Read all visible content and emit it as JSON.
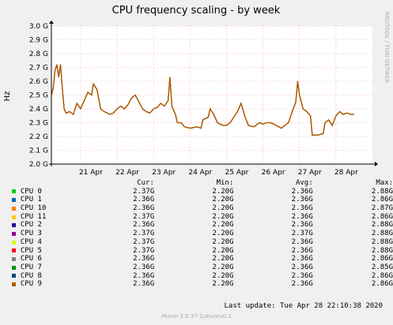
{
  "chart_data": {
    "type": "line",
    "title": "CPU frequency scaling - by week",
    "ylabel": "Hz",
    "ylim": [
      2.0,
      3.0
    ],
    "yticks": [
      {
        "v": 3.0,
        "label": "3.0 G"
      },
      {
        "v": 2.9,
        "label": "2.9 G"
      },
      {
        "v": 2.8,
        "label": "2.8 G"
      },
      {
        "v": 2.7,
        "label": "2.7 G"
      },
      {
        "v": 2.6,
        "label": "2.6 G"
      },
      {
        "v": 2.5,
        "label": "2.5 G"
      },
      {
        "v": 2.4,
        "label": "2.4 G"
      },
      {
        "v": 2.3,
        "label": "2.3 G"
      },
      {
        "v": 2.2,
        "label": "2.2 G"
      },
      {
        "v": 2.1,
        "label": "2.1 G"
      },
      {
        "v": 2.0,
        "label": "2.0 G"
      }
    ],
    "xlim": [
      20.2,
      29.0
    ],
    "xticks": [
      {
        "v": 21,
        "label": "21 Apr"
      },
      {
        "v": 22,
        "label": "22 Apr"
      },
      {
        "v": 23,
        "label": "23 Apr"
      },
      {
        "v": 24,
        "label": "24 Apr"
      },
      {
        "v": 25,
        "label": "25 Apr"
      },
      {
        "v": 26,
        "label": "26 Apr"
      },
      {
        "v": 27,
        "label": "27 Apr"
      },
      {
        "v": 28,
        "label": "28 Apr"
      }
    ],
    "x_unit": "day of April 2020",
    "grid": true,
    "series_points": [
      [
        20.2,
        2.5
      ],
      [
        20.25,
        2.55
      ],
      [
        20.3,
        2.68
      ],
      [
        20.35,
        2.72
      ],
      [
        20.4,
        2.63
      ],
      [
        20.45,
        2.72
      ],
      [
        20.5,
        2.55
      ],
      [
        20.55,
        2.4
      ],
      [
        20.6,
        2.37
      ],
      [
        20.7,
        2.38
      ],
      [
        20.8,
        2.36
      ],
      [
        20.9,
        2.44
      ],
      [
        21.0,
        2.4
      ],
      [
        21.1,
        2.46
      ],
      [
        21.2,
        2.52
      ],
      [
        21.3,
        2.5
      ],
      [
        21.35,
        2.58
      ],
      [
        21.45,
        2.54
      ],
      [
        21.55,
        2.4
      ],
      [
        21.65,
        2.38
      ],
      [
        21.8,
        2.36
      ],
      [
        21.9,
        2.37
      ],
      [
        22.0,
        2.4
      ],
      [
        22.1,
        2.42
      ],
      [
        22.2,
        2.4
      ],
      [
        22.3,
        2.43
      ],
      [
        22.4,
        2.48
      ],
      [
        22.5,
        2.5
      ],
      [
        22.6,
        2.45
      ],
      [
        22.7,
        2.4
      ],
      [
        22.8,
        2.38
      ],
      [
        22.9,
        2.37
      ],
      [
        23.0,
        2.4
      ],
      [
        23.1,
        2.41
      ],
      [
        23.2,
        2.44
      ],
      [
        23.3,
        2.42
      ],
      [
        23.4,
        2.46
      ],
      [
        23.45,
        2.63
      ],
      [
        23.5,
        2.42
      ],
      [
        23.6,
        2.36
      ],
      [
        23.65,
        2.3
      ],
      [
        23.75,
        2.3
      ],
      [
        23.85,
        2.27
      ],
      [
        24.0,
        2.26
      ],
      [
        24.2,
        2.27
      ],
      [
        24.3,
        2.26
      ],
      [
        24.35,
        2.32
      ],
      [
        24.5,
        2.34
      ],
      [
        24.55,
        2.4
      ],
      [
        24.65,
        2.36
      ],
      [
        24.75,
        2.3
      ],
      [
        24.9,
        2.28
      ],
      [
        25.0,
        2.28
      ],
      [
        25.1,
        2.3
      ],
      [
        25.2,
        2.34
      ],
      [
        25.3,
        2.38
      ],
      [
        25.4,
        2.44
      ],
      [
        25.5,
        2.35
      ],
      [
        25.6,
        2.28
      ],
      [
        25.75,
        2.27
      ],
      [
        25.9,
        2.3
      ],
      [
        26.0,
        2.29
      ],
      [
        26.1,
        2.3
      ],
      [
        26.2,
        2.3
      ],
      [
        26.3,
        2.29
      ],
      [
        26.5,
        2.26
      ],
      [
        26.6,
        2.28
      ],
      [
        26.7,
        2.3
      ],
      [
        26.8,
        2.38
      ],
      [
        26.9,
        2.45
      ],
      [
        26.95,
        2.6
      ],
      [
        27.0,
        2.5
      ],
      [
        27.1,
        2.4
      ],
      [
        27.2,
        2.38
      ],
      [
        27.3,
        2.35
      ],
      [
        27.35,
        2.21
      ],
      [
        27.5,
        2.21
      ],
      [
        27.65,
        2.22
      ],
      [
        27.7,
        2.3
      ],
      [
        27.8,
        2.32
      ],
      [
        27.9,
        2.28
      ],
      [
        28.0,
        2.35
      ],
      [
        28.1,
        2.38
      ],
      [
        28.2,
        2.36
      ],
      [
        28.3,
        2.37
      ],
      [
        28.4,
        2.36
      ],
      [
        28.5,
        2.36
      ]
    ],
    "legend_headers": {
      "cur": "Cur:",
      "min": "Min:",
      "avg": "Avg:",
      "max": "Max:"
    },
    "series": [
      {
        "name": "CPU 0",
        "color": "#00cc00",
        "cur": "2.37G",
        "min": "2.20G",
        "avg": "2.36G",
        "max": "2.88G"
      },
      {
        "name": "CPU 1",
        "color": "#0066b3",
        "cur": "2.36G",
        "min": "2.20G",
        "avg": "2.36G",
        "max": "2.86G"
      },
      {
        "name": "CPU 10",
        "color": "#ff8000",
        "cur": "2.36G",
        "min": "2.20G",
        "avg": "2.36G",
        "max": "2.87G"
      },
      {
        "name": "CPU 11",
        "color": "#ffcc00",
        "cur": "2.37G",
        "min": "2.20G",
        "avg": "2.36G",
        "max": "2.86G"
      },
      {
        "name": "CPU 2",
        "color": "#330099",
        "cur": "2.36G",
        "min": "2.20G",
        "avg": "2.36G",
        "max": "2.88G"
      },
      {
        "name": "CPU 3",
        "color": "#990099",
        "cur": "2.37G",
        "min": "2.20G",
        "avg": "2.37G",
        "max": "2.88G"
      },
      {
        "name": "CPU 4",
        "color": "#ccff00",
        "cur": "2.37G",
        "min": "2.20G",
        "avg": "2.36G",
        "max": "2.88G"
      },
      {
        "name": "CPU 5",
        "color": "#ff0000",
        "cur": "2.37G",
        "min": "2.20G",
        "avg": "2.36G",
        "max": "2.88G"
      },
      {
        "name": "CPU 6",
        "color": "#808080",
        "cur": "2.36G",
        "min": "2.20G",
        "avg": "2.36G",
        "max": "2.86G"
      },
      {
        "name": "CPU 7",
        "color": "#008f00",
        "cur": "2.36G",
        "min": "2.20G",
        "avg": "2.36G",
        "max": "2.85G"
      },
      {
        "name": "CPU 8",
        "color": "#00487d",
        "cur": "2.36G",
        "min": "2.20G",
        "avg": "2.36G",
        "max": "2.86G"
      },
      {
        "name": "CPU 9",
        "color": "#b35a00",
        "cur": "2.36G",
        "min": "2.20G",
        "avg": "2.36G",
        "max": "2.86G"
      }
    ]
  },
  "side_label": "RRDTOOL / TOBI OETIKER",
  "footer": "Last update: Tue Apr 28 22:10:38 2020",
  "version": "Munin 2.0.37-1ubuntu0.1",
  "colors": {
    "background": "#f0f0f0",
    "plot": "#ffffff",
    "grid": "#ff9a9a",
    "line": "#b35a00"
  }
}
